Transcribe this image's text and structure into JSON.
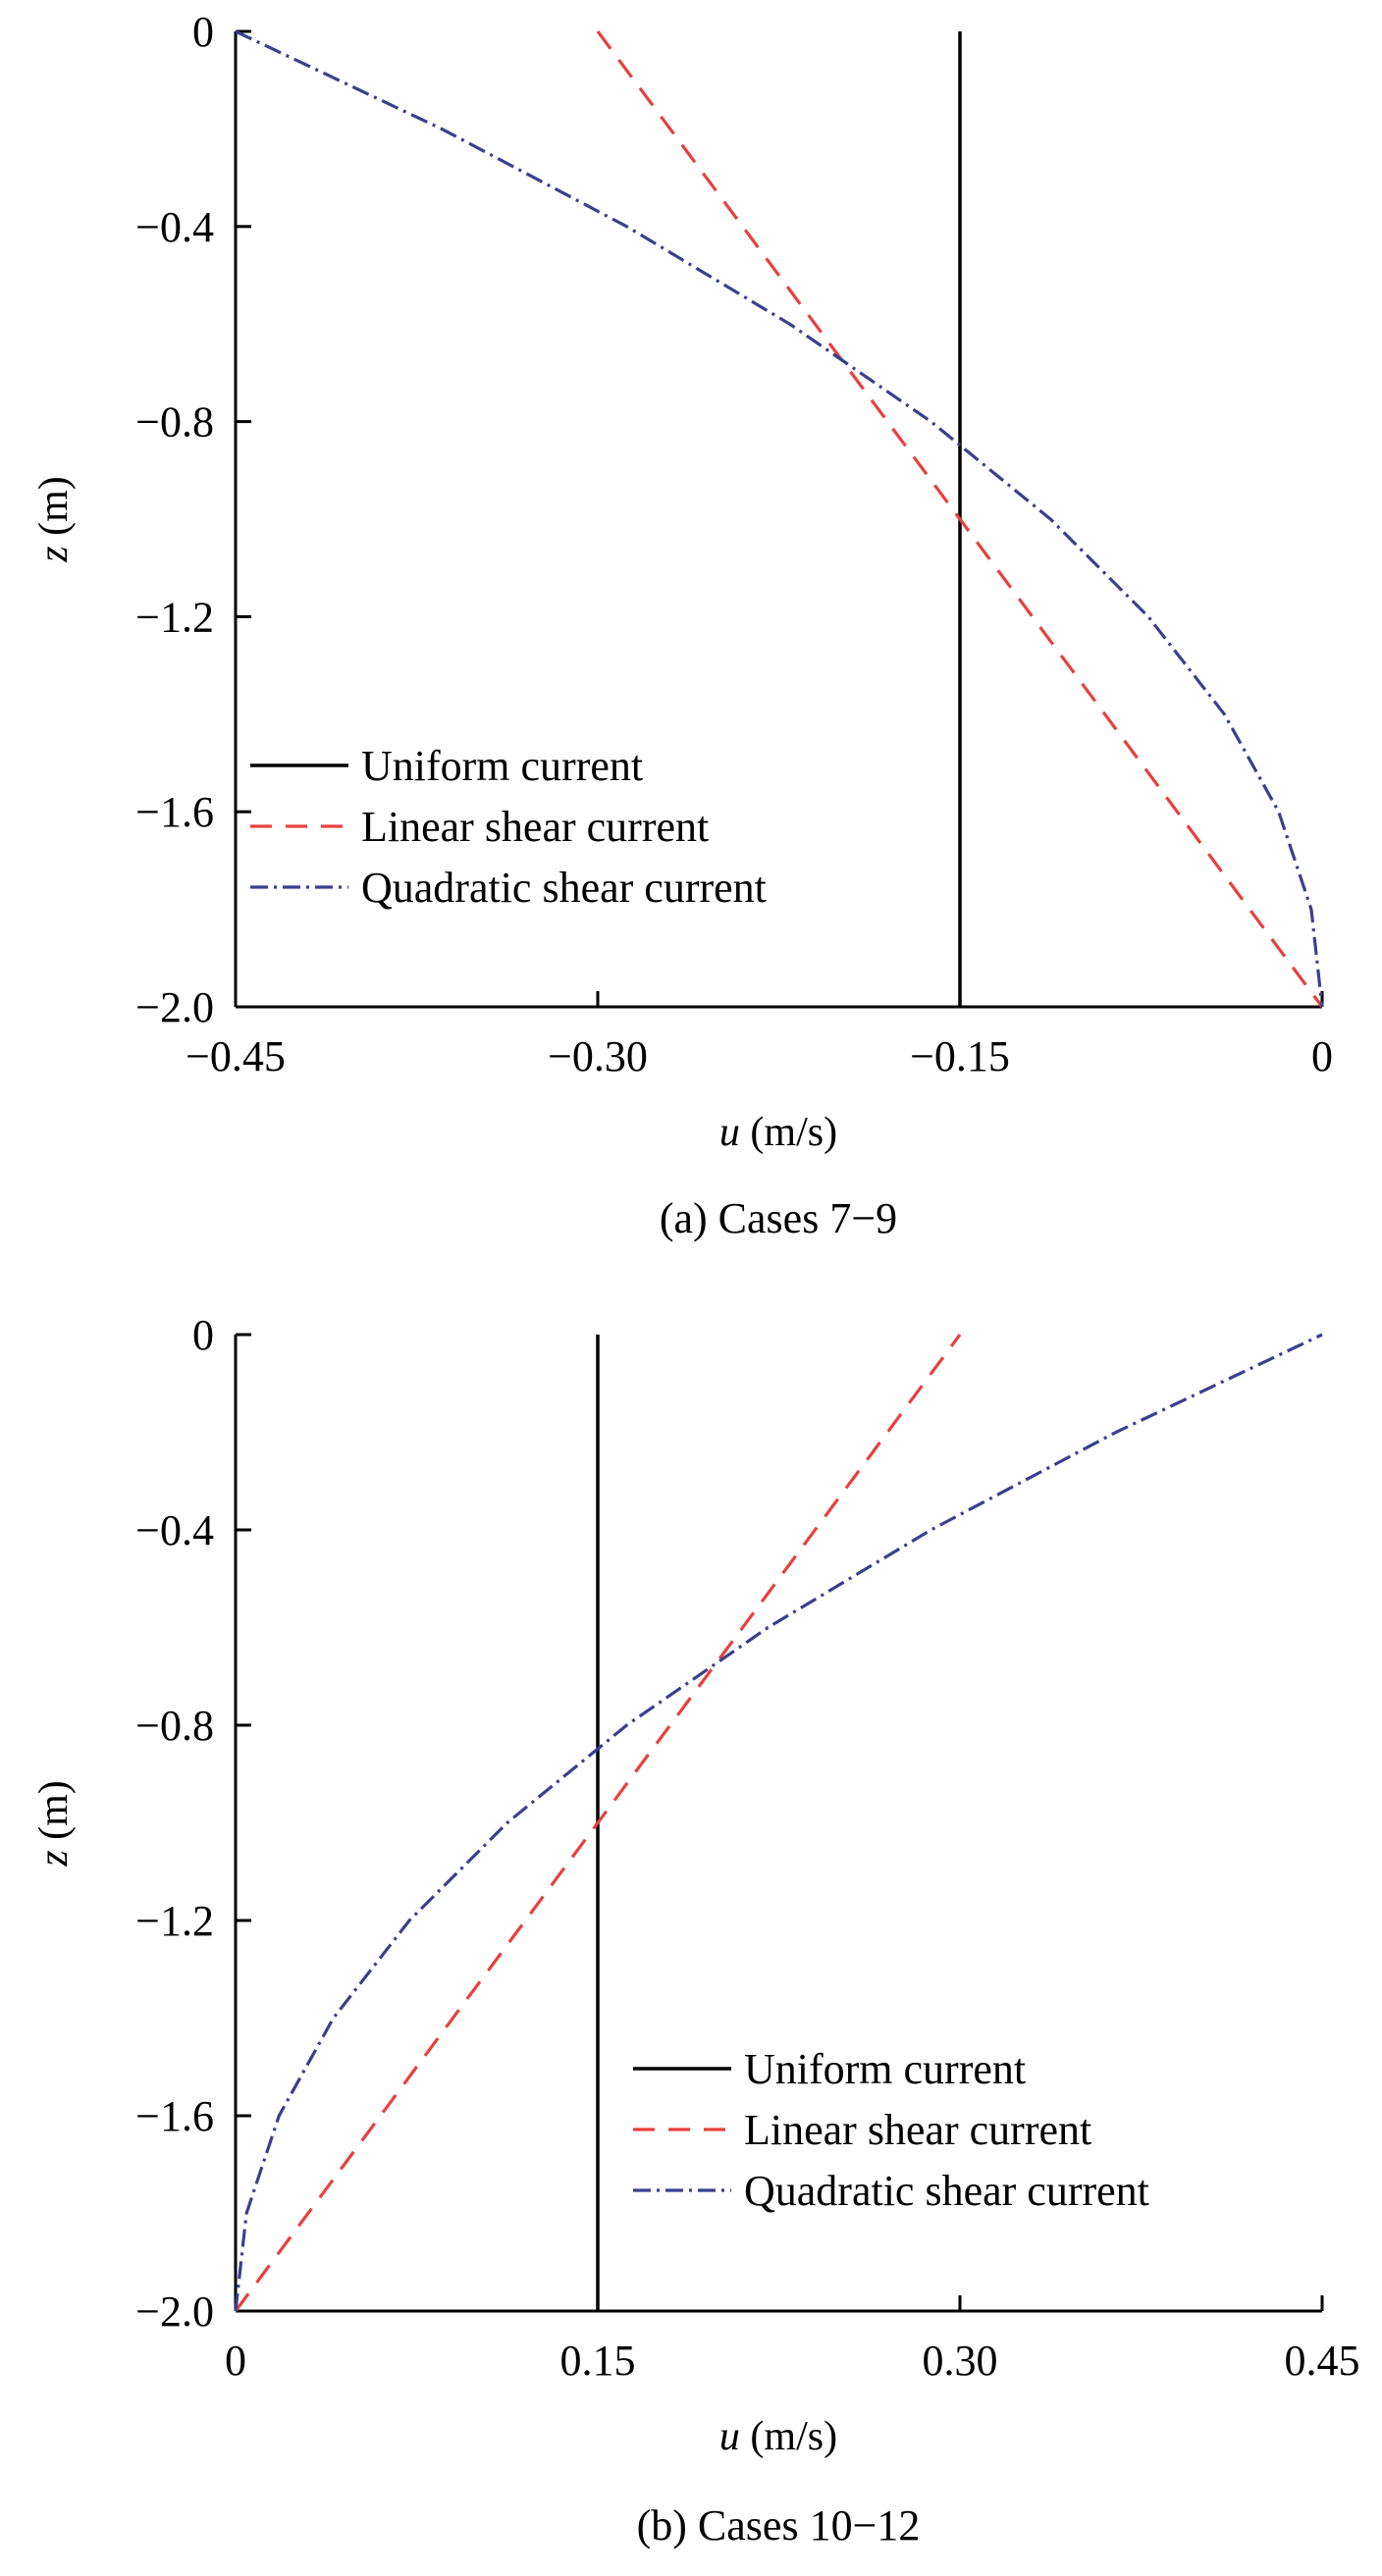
{
  "chart_data": [
    {
      "type": "line",
      "caption": "(a) Cases 7−9",
      "xlabel_var": "u",
      "xlabel_unit": "(m/s)",
      "ylabel_var": "z",
      "ylabel_unit": "(m)",
      "xlim": [
        -0.45,
        0
      ],
      "ylim": [
        -2.0,
        0
      ],
      "xticks": [
        -0.45,
        -0.3,
        -0.15,
        0
      ],
      "xtick_labels": [
        "−0.45",
        "−0.30",
        "−0.15",
        "0"
      ],
      "yticks": [
        0,
        -0.4,
        -0.8,
        -1.2,
        -1.6,
        -2.0
      ],
      "ytick_labels": [
        "0",
        "−0.4",
        "−0.8",
        "−1.2",
        "−1.6",
        "−2.0"
      ],
      "grid": false,
      "legend_position": "lower-left",
      "series": [
        {
          "name": "Uniform current",
          "color": "#000000",
          "style": "solid",
          "x": [
            -0.15,
            -0.15
          ],
          "y": [
            0,
            -2.0
          ]
        },
        {
          "name": "Linear shear current",
          "color": "#e8403c",
          "style": "dashed",
          "x": [
            -0.3,
            0
          ],
          "y": [
            0,
            -2.0
          ]
        },
        {
          "name": "Quadratic shear current",
          "color": "#3a3f8f",
          "style": "dash-dot",
          "x": [
            -0.45,
            -0.3646,
            -0.288,
            -0.2205,
            -0.162,
            -0.1125,
            -0.072,
            -0.0405,
            -0.018,
            -0.0045,
            0
          ],
          "y": [
            0,
            -0.2,
            -0.4,
            -0.6,
            -0.8,
            -1.0,
            -1.2,
            -1.4,
            -1.6,
            -1.8,
            -2.0
          ]
        }
      ]
    },
    {
      "type": "line",
      "caption": "(b) Cases 10−12",
      "xlabel_var": "u",
      "xlabel_unit": "(m/s)",
      "ylabel_var": "z",
      "ylabel_unit": "(m)",
      "xlim": [
        0,
        0.45
      ],
      "ylim": [
        -2.0,
        0
      ],
      "xticks": [
        0,
        0.15,
        0.3,
        0.45
      ],
      "xtick_labels": [
        "0",
        "0.15",
        "0.30",
        "0.45"
      ],
      "yticks": [
        0,
        -0.4,
        -0.8,
        -1.2,
        -1.6,
        -2.0
      ],
      "ytick_labels": [
        "0",
        "−0.4",
        "−0.8",
        "−1.2",
        "−1.6",
        "−2.0"
      ],
      "grid": false,
      "legend_position": "lower-right",
      "series": [
        {
          "name": "Uniform current",
          "color": "#000000",
          "style": "solid",
          "x": [
            0.15,
            0.15
          ],
          "y": [
            0,
            -2.0
          ]
        },
        {
          "name": "Linear shear current",
          "color": "#e8403c",
          "style": "dashed",
          "x": [
            0,
            0.3
          ],
          "y": [
            -2.0,
            0
          ]
        },
        {
          "name": "Quadratic shear current",
          "color": "#3a3f8f",
          "style": "dash-dot",
          "x": [
            0,
            0.0045,
            0.018,
            0.0405,
            0.072,
            0.1125,
            0.162,
            0.2205,
            0.288,
            0.3646,
            0.45
          ],
          "y": [
            -2.0,
            -1.8,
            -1.6,
            -1.4,
            -1.2,
            -1.0,
            -0.8,
            -0.6,
            -0.4,
            -0.2,
            0
          ]
        }
      ]
    }
  ]
}
